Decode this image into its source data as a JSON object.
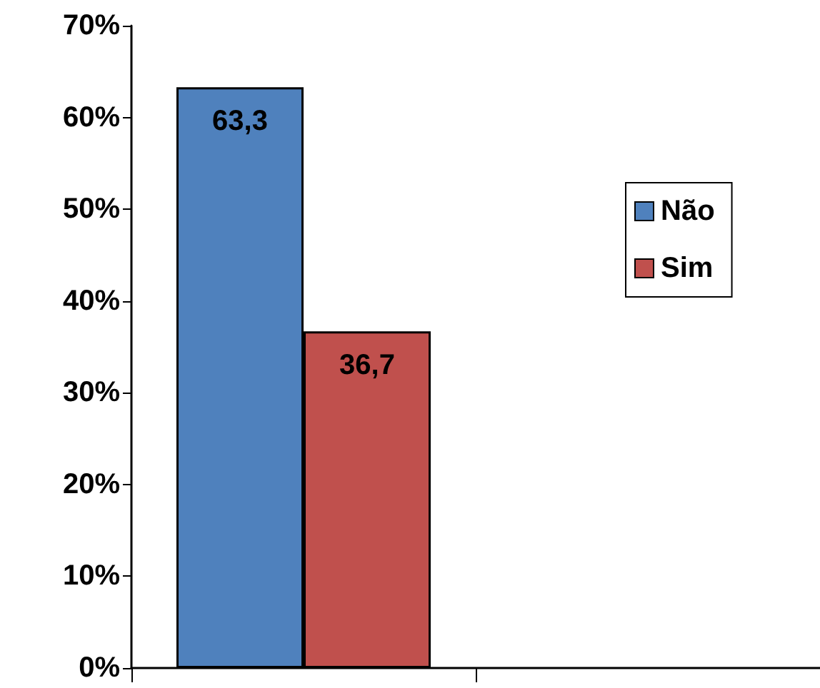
{
  "chart_data": {
    "type": "bar",
    "categories": [
      null,
      null
    ],
    "series": [
      {
        "name": "Não",
        "color": "#4f81bd",
        "values": [
          63.3,
          null
        ],
        "value_labels": [
          "63,3",
          null
        ]
      },
      {
        "name": "Sim",
        "color": "#c0504d",
        "values": [
          36.7,
          null
        ],
        "value_labels": [
          "36,7",
          null
        ]
      }
    ],
    "ylim": [
      0,
      70
    ],
    "yticks": [
      {
        "value": 0,
        "label": "0%"
      },
      {
        "value": 10,
        "label": "10%"
      },
      {
        "value": 20,
        "label": "20%"
      },
      {
        "value": 30,
        "label": "30%"
      },
      {
        "value": 40,
        "label": "40%"
      },
      {
        "value": 50,
        "label": "50%"
      },
      {
        "value": 60,
        "label": "60%"
      },
      {
        "value": 70,
        "label": "70%"
      }
    ],
    "grid": false,
    "legend": "right"
  }
}
